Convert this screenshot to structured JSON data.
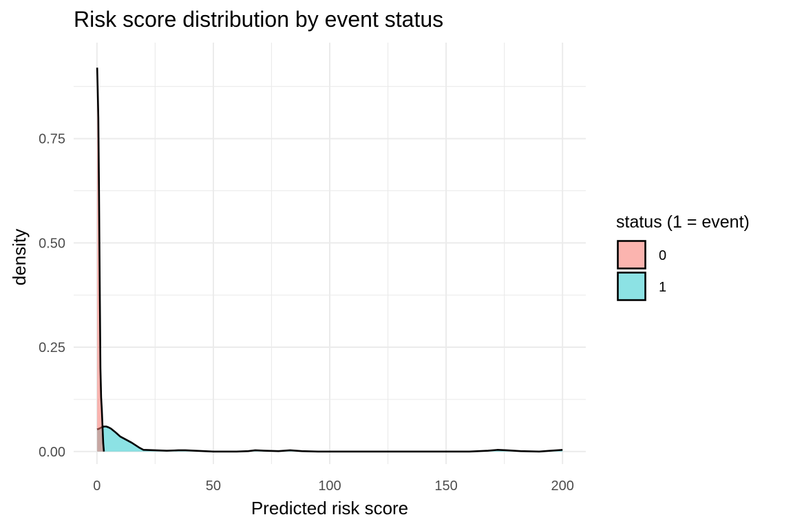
{
  "chart_data": {
    "type": "area",
    "subtype": "density",
    "title": "Risk score distribution by event status",
    "xlabel": "Predicted risk score",
    "ylabel": "density",
    "xlim": [
      -10,
      210
    ],
    "ylim": [
      -0.03,
      0.98
    ],
    "x_ticks": [
      0,
      50,
      100,
      150,
      200
    ],
    "x_tick_labels": [
      "0",
      "50",
      "100",
      "150",
      "200"
    ],
    "y_ticks": [
      0,
      0.25,
      0.5,
      0.75
    ],
    "y_tick_labels": [
      "0.00",
      "0.25",
      "0.50",
      "0.75"
    ],
    "grid": true,
    "legend": {
      "title": "status (1 = event)",
      "position": "right"
    },
    "series": [
      {
        "name": "0",
        "color": "#F8766D",
        "fill_opacity": 0.55,
        "x": [
          0.1,
          0.3,
          0.6,
          0.9,
          1.2,
          1.5,
          1.8,
          2.1,
          2.4,
          2.7,
          3.0
        ],
        "y": [
          0.92,
          0.875,
          0.8,
          0.62,
          0.4,
          0.2,
          0.13,
          0.1,
          0.06,
          0.02,
          0.0
        ]
      },
      {
        "name": "1",
        "color": "#00BFC4",
        "fill_opacity": 0.45,
        "x": [
          0.1,
          1,
          2,
          3,
          4,
          5,
          6,
          8,
          10,
          12,
          15,
          18,
          20,
          25,
          30,
          35,
          38,
          42,
          50,
          60,
          65,
          68,
          72,
          78,
          83,
          88,
          95,
          110,
          130,
          160,
          168,
          172,
          176,
          182,
          190,
          195,
          200
        ],
        "y": [
          0.053,
          0.055,
          0.058,
          0.06,
          0.06,
          0.058,
          0.055,
          0.046,
          0.036,
          0.03,
          0.021,
          0.01,
          0.004,
          0.003,
          0.002,
          0.003,
          0.003,
          0.002,
          0.0,
          0.0,
          0.001,
          0.003,
          0.002,
          0.001,
          0.003,
          0.001,
          0.0,
          0.0,
          0.0,
          0.0,
          0.002,
          0.004,
          0.003,
          0.001,
          0.0,
          0.002,
          0.004
        ]
      }
    ]
  }
}
